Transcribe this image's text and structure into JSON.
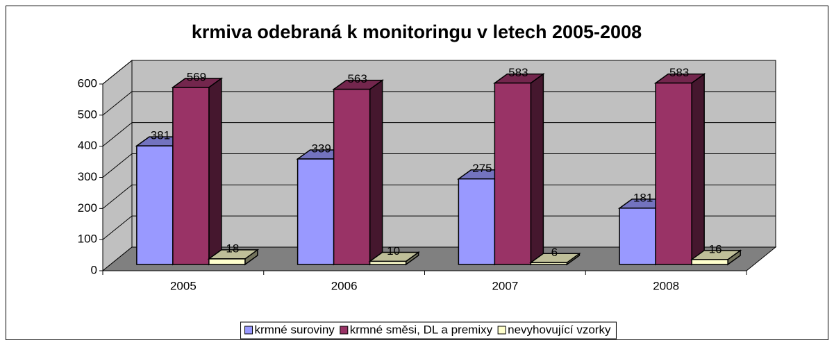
{
  "chart_data": {
    "type": "bar3d",
    "title": "krmiva odebraná k monitoringu v letech 2005-2008",
    "categories": [
      "2005",
      "2006",
      "2007",
      "2008"
    ],
    "series": [
      {
        "name": "krmné suroviny",
        "color": "#9999ff",
        "values": [
          381,
          339,
          275,
          181
        ]
      },
      {
        "name": "krmné směsi, DL a premixy",
        "color": "#993366",
        "values": [
          569,
          563,
          583,
          583
        ]
      },
      {
        "name": "nevyhovující vzorky",
        "color": "#ffffcc",
        "values": [
          18,
          10,
          6,
          16
        ]
      }
    ],
    "ylim": [
      0,
      600
    ],
    "yticks": [
      0,
      100,
      200,
      300,
      400,
      500,
      600
    ],
    "grid": true,
    "legend": "bottom"
  }
}
